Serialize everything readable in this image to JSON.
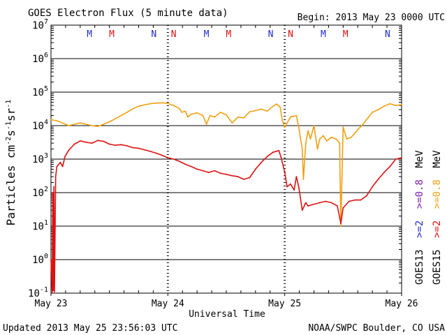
{
  "header": {
    "title": "GOES Electron Flux (5 minute data)",
    "begin": "Begin: 2013 May 23 0000 UTC"
  },
  "footer": {
    "updated": "Updated 2013 May 25 23:56:03 UTC",
    "credit": "NOAA/SWPC Boulder, CO USA"
  },
  "axes": {
    "xlabel": "Universal Time",
    "ylabel_parts": [
      "Particles cm",
      "-2",
      "s",
      "-1",
      "sr",
      "-1"
    ]
  },
  "right_legend": [
    {
      "sat": "GOES13",
      "a": ">=2",
      "b": ">=0.8",
      "unit": "MeV",
      "color_a": "#1f2ccc",
      "color_b": "#7a1fa8"
    },
    {
      "sat": "GOES15",
      "a": ">=2",
      "b": ">=0.8",
      "unit": "MeV",
      "color_a": "#dd1111",
      "color_b": "#f0a010"
    }
  ],
  "colors": {
    "goes15_gt2": "#dd1111",
    "goes15_gt08": "#f0a010",
    "m_marker": "#1f2ccc",
    "m_marker2": "#dd1111"
  },
  "chart_data": {
    "type": "line",
    "title": "GOES Electron Flux (5 minute data)",
    "xlabel": "Universal Time",
    "ylabel": "Particles cm-2 s-1 sr-1",
    "y_scale": "log",
    "ylim": [
      0.1,
      10000000
    ],
    "xlim": [
      "2013-05-23 00:00",
      "2013-05-26 00:00"
    ],
    "x_tick_labels": [
      "May 23",
      "May 24",
      "May 25",
      "May 26"
    ],
    "y_tick_labels": [
      {
        "base": "10",
        "exp": "7"
      },
      {
        "base": "10",
        "exp": "6"
      },
      {
        "base": "10",
        "exp": "5"
      },
      {
        "base": "10",
        "exp": "4"
      },
      {
        "base": "10",
        "exp": "3"
      },
      {
        "base": "10",
        "exp": "2"
      },
      {
        "base": "10",
        "exp": "1"
      },
      {
        "base": "10",
        "exp": "0"
      },
      {
        "base": "10",
        "exp": "-1"
      }
    ],
    "threshold": 1000,
    "markers": [
      {
        "day": 0.33,
        "label": "M",
        "color": "#1f2ccc"
      },
      {
        "day": 0.52,
        "label": "M",
        "color": "#dd1111"
      },
      {
        "day": 0.88,
        "label": "N",
        "color": "#1f2ccc"
      },
      {
        "day": 1.05,
        "label": "N",
        "color": "#dd1111"
      },
      {
        "day": 1.33,
        "label": "M",
        "color": "#1f2ccc"
      },
      {
        "day": 1.52,
        "label": "M",
        "color": "#dd1111"
      },
      {
        "day": 1.88,
        "label": "N",
        "color": "#1f2ccc"
      },
      {
        "day": 2.05,
        "label": "N",
        "color": "#dd1111"
      },
      {
        "day": 2.33,
        "label": "M",
        "color": "#1f2ccc"
      },
      {
        "day": 2.52,
        "label": "M",
        "color": "#dd1111"
      },
      {
        "day": 2.88,
        "label": "N",
        "color": "#1f2ccc"
      },
      {
        "day": 3.05,
        "label": "N",
        "color": "#dd1111"
      }
    ],
    "series": [
      {
        "name": "GOES15 >=0.8 MeV",
        "color": "#f0a010",
        "points": [
          [
            0.0,
            15000
          ],
          [
            0.05,
            14000
          ],
          [
            0.1,
            12000
          ],
          [
            0.15,
            10000
          ],
          [
            0.2,
            11000
          ],
          [
            0.25,
            12000
          ],
          [
            0.3,
            11000
          ],
          [
            0.35,
            10000
          ],
          [
            0.4,
            9500
          ],
          [
            0.45,
            11000
          ],
          [
            0.5,
            13000
          ],
          [
            0.55,
            16000
          ],
          [
            0.6,
            20000
          ],
          [
            0.65,
            25000
          ],
          [
            0.7,
            32000
          ],
          [
            0.75,
            38000
          ],
          [
            0.8,
            42000
          ],
          [
            0.85,
            45000
          ],
          [
            0.9,
            47000
          ],
          [
            0.95,
            48000
          ],
          [
            1.0,
            46000
          ],
          [
            1.05,
            40000
          ],
          [
            1.1,
            32000
          ],
          [
            1.12,
            25000
          ],
          [
            1.15,
            27000
          ],
          [
            1.17,
            18000
          ],
          [
            1.2,
            22000
          ],
          [
            1.25,
            24000
          ],
          [
            1.3,
            20000
          ],
          [
            1.33,
            11000
          ],
          [
            1.36,
            20000
          ],
          [
            1.4,
            18000
          ],
          [
            1.45,
            25000
          ],
          [
            1.5,
            21000
          ],
          [
            1.55,
            12000
          ],
          [
            1.6,
            18000
          ],
          [
            1.65,
            17000
          ],
          [
            1.7,
            26000
          ],
          [
            1.75,
            28000
          ],
          [
            1.8,
            31000
          ],
          [
            1.85,
            27000
          ],
          [
            1.9,
            38000
          ],
          [
            1.93,
            44000
          ],
          [
            1.96,
            36000
          ],
          [
            1.98,
            14000
          ],
          [
            2.0,
            9000
          ],
          [
            2.02,
            12000
          ],
          [
            2.05,
            18000
          ],
          [
            2.1,
            20000
          ],
          [
            2.12,
            9000
          ],
          [
            2.15,
            2000
          ],
          [
            2.16,
            250
          ],
          [
            2.18,
            3000
          ],
          [
            2.2,
            7000
          ],
          [
            2.22,
            4000
          ],
          [
            2.25,
            10000
          ],
          [
            2.28,
            2000
          ],
          [
            2.3,
            4000
          ],
          [
            2.33,
            5000
          ],
          [
            2.36,
            3500
          ],
          [
            2.4,
            4500
          ],
          [
            2.44,
            4000
          ],
          [
            2.47,
            3000
          ],
          [
            2.48,
            10
          ],
          [
            2.5,
            9000
          ],
          [
            2.53,
            4000
          ],
          [
            2.57,
            4500
          ],
          [
            2.6,
            6000
          ],
          [
            2.63,
            8000
          ],
          [
            2.66,
            10000
          ],
          [
            2.7,
            15000
          ],
          [
            2.75,
            25000
          ],
          [
            2.8,
            30000
          ],
          [
            2.85,
            38000
          ],
          [
            2.9,
            45000
          ],
          [
            2.95,
            40000
          ],
          [
            3.0,
            42000
          ]
        ]
      },
      {
        "name": "GOES15 >=2 MeV",
        "color": "#dd1111",
        "points": [
          [
            0.0,
            1
          ],
          [
            0.01,
            0.1
          ],
          [
            0.015,
            100
          ],
          [
            0.02,
            0.12
          ],
          [
            0.025,
            150
          ],
          [
            0.03,
            0.11
          ],
          [
            0.04,
            300
          ],
          [
            0.05,
            600
          ],
          [
            0.08,
            800
          ],
          [
            0.1,
            600
          ],
          [
            0.12,
            1200
          ],
          [
            0.15,
            1800
          ],
          [
            0.2,
            2800
          ],
          [
            0.25,
            3500
          ],
          [
            0.3,
            3200
          ],
          [
            0.35,
            3000
          ],
          [
            0.4,
            3600
          ],
          [
            0.45,
            3400
          ],
          [
            0.5,
            2800
          ],
          [
            0.55,
            2600
          ],
          [
            0.6,
            2700
          ],
          [
            0.65,
            2500
          ],
          [
            0.7,
            2200
          ],
          [
            0.75,
            2100
          ],
          [
            0.8,
            1900
          ],
          [
            0.85,
            1700
          ],
          [
            0.9,
            1500
          ],
          [
            0.95,
            1300
          ],
          [
            1.0,
            1100
          ],
          [
            1.05,
            1000
          ],
          [
            1.1,
            850
          ],
          [
            1.15,
            700
          ],
          [
            1.2,
            600
          ],
          [
            1.25,
            500
          ],
          [
            1.3,
            450
          ],
          [
            1.35,
            400
          ],
          [
            1.4,
            450
          ],
          [
            1.45,
            380
          ],
          [
            1.5,
            350
          ],
          [
            1.55,
            320
          ],
          [
            1.6,
            300
          ],
          [
            1.65,
            250
          ],
          [
            1.7,
            280
          ],
          [
            1.75,
            500
          ],
          [
            1.8,
            800
          ],
          [
            1.85,
            1200
          ],
          [
            1.9,
            1600
          ],
          [
            1.95,
            1800
          ],
          [
            1.97,
            1100
          ],
          [
            2.0,
            400
          ],
          [
            2.02,
            150
          ],
          [
            2.05,
            180
          ],
          [
            2.08,
            120
          ],
          [
            2.1,
            300
          ],
          [
            2.12,
            150
          ],
          [
            2.15,
            30
          ],
          [
            2.18,
            50
          ],
          [
            2.2,
            40
          ],
          [
            2.25,
            45
          ],
          [
            2.3,
            50
          ],
          [
            2.35,
            55
          ],
          [
            2.4,
            50
          ],
          [
            2.45,
            40
          ],
          [
            2.48,
            12
          ],
          [
            2.5,
            35
          ],
          [
            2.55,
            55
          ],
          [
            2.6,
            60
          ],
          [
            2.65,
            60
          ],
          [
            2.7,
            80
          ],
          [
            2.75,
            150
          ],
          [
            2.8,
            250
          ],
          [
            2.85,
            400
          ],
          [
            2.9,
            600
          ],
          [
            2.95,
            1000
          ],
          [
            3.0,
            1100
          ]
        ]
      }
    ]
  }
}
